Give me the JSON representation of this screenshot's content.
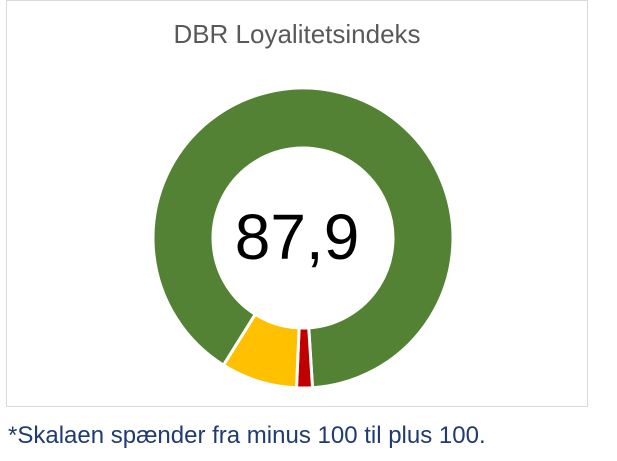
{
  "chart_data": {
    "type": "pie",
    "title": "DBR Loyalitetsindeks",
    "center_label": "87,9",
    "series": [
      {
        "color": "#548235",
        "value": 90.1
      },
      {
        "color": "#C00000",
        "value": 1.7
      },
      {
        "color": "#FFC000",
        "value": 8.2
      }
    ]
  },
  "footnote": "*Skalaen spænder fra minus 100 til plus 100."
}
